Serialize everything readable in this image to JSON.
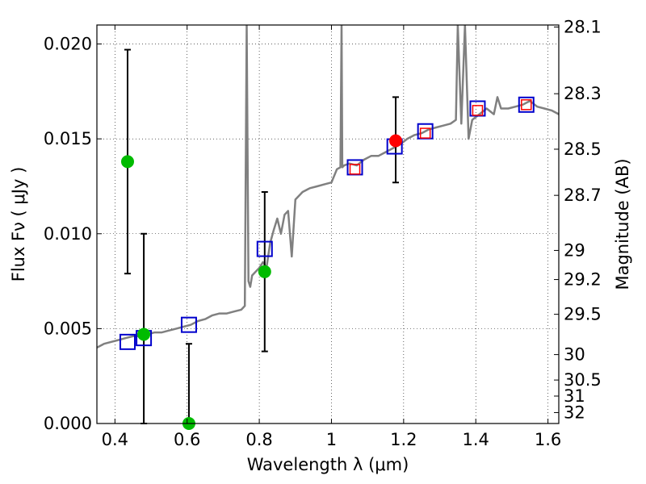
{
  "chart_data": {
    "type": "scatter",
    "xlabel": "Wavelength  λ (μm)",
    "ylabel": "Flux  Fν  ( μJy )",
    "ylabel_right": "Magnitude (AB)",
    "xlim": [
      0.35,
      1.63
    ],
    "ylim": [
      0.0,
      0.021
    ],
    "grid": true,
    "x_ticks": [
      0.4,
      0.6,
      0.8,
      1.0,
      1.2,
      1.4,
      1.6
    ],
    "x_tick_labels": [
      "0.4",
      "0.6",
      "0.8",
      "1",
      "1.2",
      "1.4",
      "1.6"
    ],
    "y_ticks": [
      0.0,
      0.005,
      0.01,
      0.015,
      0.02
    ],
    "y_tick_labels": [
      "0.000",
      "0.005",
      "0.010",
      "0.015",
      "0.020"
    ],
    "mag_ticks": [
      "28.1",
      "28.3",
      "28.5",
      "28.7",
      "29",
      "29.2",
      "29.5",
      "30",
      "30.5",
      "31",
      "32"
    ],
    "colors": {
      "sed": "#808080",
      "model_phot": "#0000cc",
      "observed_upper": "#ff0000",
      "observed_lower": "#ff0000",
      "green_points": "#00bb00",
      "red_point": "#ff0000",
      "errorbar": "#000000"
    },
    "sed_model": {
      "x": [
        0.35,
        0.37,
        0.39,
        0.41,
        0.43,
        0.45,
        0.47,
        0.49,
        0.51,
        0.53,
        0.55,
        0.57,
        0.59,
        0.61,
        0.63,
        0.65,
        0.67,
        0.69,
        0.71,
        0.73,
        0.75,
        0.76,
        0.765,
        0.77,
        0.775,
        0.78,
        0.79,
        0.8,
        0.81,
        0.82,
        0.83,
        0.84,
        0.85,
        0.86,
        0.87,
        0.88,
        0.89,
        0.9,
        0.92,
        0.94,
        0.96,
        0.98,
        1.0,
        1.015,
        1.025,
        1.028,
        1.03,
        1.035,
        1.05,
        1.07,
        1.09,
        1.11,
        1.13,
        1.15,
        1.17,
        1.19,
        1.21,
        1.23,
        1.25,
        1.27,
        1.29,
        1.31,
        1.33,
        1.345,
        1.35,
        1.36,
        1.37,
        1.38,
        1.39,
        1.41,
        1.43,
        1.45,
        1.46,
        1.47,
        1.49,
        1.51,
        1.53,
        1.55,
        1.57,
        1.59,
        1.61,
        1.63
      ],
      "y": [
        0.004,
        0.0042,
        0.0043,
        0.0044,
        0.0045,
        0.0046,
        0.0046,
        0.0047,
        0.0048,
        0.0048,
        0.0049,
        0.005,
        0.0051,
        0.0052,
        0.0054,
        0.0055,
        0.0057,
        0.0058,
        0.0058,
        0.0059,
        0.006,
        0.0062,
        0.021,
        0.0075,
        0.0072,
        0.0078,
        0.008,
        0.0082,
        0.0085,
        0.0082,
        0.0095,
        0.0102,
        0.0108,
        0.01,
        0.011,
        0.0112,
        0.0088,
        0.0118,
        0.0122,
        0.0124,
        0.0125,
        0.0126,
        0.0127,
        0.0134,
        0.0135,
        0.021,
        0.0135,
        0.0136,
        0.0137,
        0.0136,
        0.0139,
        0.0141,
        0.0141,
        0.0143,
        0.0145,
        0.0147,
        0.015,
        0.0152,
        0.0153,
        0.0155,
        0.0156,
        0.0157,
        0.0158,
        0.016,
        0.021,
        0.0158,
        0.021,
        0.015,
        0.016,
        0.0163,
        0.0166,
        0.0163,
        0.0172,
        0.0166,
        0.0166,
        0.0167,
        0.0168,
        0.017,
        0.0167,
        0.0166,
        0.0165,
        0.0163
      ]
    },
    "model_photometry": {
      "x": [
        0.435,
        0.48,
        0.605,
        0.815,
        1.065,
        1.175,
        1.26,
        1.405,
        1.54
      ],
      "y": [
        0.0043,
        0.0045,
        0.0052,
        0.0092,
        0.0135,
        0.0146,
        0.0154,
        0.0166,
        0.0168
      ]
    },
    "observed_photometry": {
      "x": [
        1.065,
        1.26,
        1.405,
        1.54
      ],
      "y": [
        0.0134,
        0.0153,
        0.0165,
        0.0168
      ]
    },
    "detections_green": {
      "x": [
        0.435,
        0.48,
        0.605,
        0.815
      ],
      "y": [
        0.0138,
        0.0047,
        0.0,
        0.008
      ],
      "err_low": [
        0.0059,
        0.0047,
        0.0,
        0.0042
      ],
      "err_high": [
        0.0059,
        0.0053,
        0.0042,
        0.0042
      ]
    },
    "detection_red": {
      "x": [
        1.178
      ],
      "y": [
        0.0149
      ],
      "err_low": [
        0.0022
      ],
      "err_high": [
        0.0023
      ]
    }
  }
}
